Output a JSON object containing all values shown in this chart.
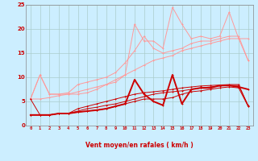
{
  "x": [
    0,
    1,
    2,
    3,
    4,
    5,
    6,
    7,
    8,
    9,
    10,
    11,
    12,
    13,
    14,
    15,
    16,
    17,
    18,
    19,
    20,
    21,
    22,
    23
  ],
  "line_smooth1": [
    5.5,
    5.5,
    5.8,
    6.2,
    6.5,
    7.0,
    7.5,
    8.0,
    8.5,
    9.5,
    10.5,
    11.5,
    12.5,
    13.5,
    14.0,
    14.5,
    15.5,
    16.0,
    16.5,
    17.0,
    17.5,
    18.0,
    18.0,
    13.5
  ],
  "line_spiky2": [
    5.5,
    10.5,
    6.5,
    6.5,
    6.8,
    8.5,
    9.0,
    9.5,
    10.0,
    11.0,
    13.0,
    15.5,
    18.5,
    16.0,
    15.0,
    15.5,
    16.0,
    17.0,
    17.5,
    17.5,
    18.0,
    18.5,
    18.5,
    13.5
  ],
  "line_spiky3": [
    5.5,
    10.5,
    6.5,
    6.5,
    6.5,
    6.5,
    6.8,
    7.5,
    8.5,
    9.0,
    10.5,
    21.0,
    17.5,
    17.5,
    16.0,
    24.5,
    21.0,
    18.0,
    18.5,
    18.0,
    18.5,
    23.5,
    18.0,
    18.0
  ],
  "line_dark1": [
    2.2,
    2.2,
    2.2,
    2.5,
    2.5,
    3.0,
    3.5,
    3.8,
    4.2,
    4.5,
    5.0,
    5.5,
    6.0,
    6.5,
    6.8,
    7.0,
    7.2,
    7.5,
    7.8,
    8.0,
    8.2,
    8.3,
    8.3,
    4.2
  ],
  "line_dark2": [
    2.2,
    2.2,
    2.2,
    2.5,
    2.5,
    2.8,
    3.0,
    3.2,
    3.5,
    4.0,
    4.5,
    5.0,
    5.5,
    5.5,
    5.5,
    5.8,
    6.5,
    7.0,
    7.2,
    7.5,
    7.8,
    8.0,
    7.8,
    4.0
  ],
  "line_dark3_thick": [
    2.2,
    2.2,
    2.2,
    2.5,
    2.5,
    2.8,
    3.0,
    3.2,
    3.5,
    4.0,
    4.5,
    9.5,
    6.5,
    5.0,
    4.2,
    10.5,
    4.5,
    7.5,
    7.8,
    7.8,
    8.3,
    8.3,
    8.0,
    7.5
  ],
  "line_dark4": [
    5.5,
    2.2,
    2.2,
    2.5,
    2.5,
    3.5,
    4.0,
    4.5,
    5.0,
    5.5,
    6.0,
    6.5,
    6.8,
    7.0,
    7.2,
    7.5,
    7.8,
    8.0,
    8.2,
    8.3,
    8.4,
    8.5,
    8.5,
    4.0
  ],
  "arrows": [
    "←",
    "←",
    "←",
    "←",
    "←",
    "←",
    "←",
    "←",
    "←",
    "←",
    "←",
    "↓",
    "↙",
    "←",
    "←",
    "→",
    "→",
    "→",
    "→",
    "→",
    "→",
    "→",
    "→",
    "↗"
  ],
  "bg_color": "#cceeff",
  "grid_color": "#aacccc",
  "line_color_dark": "#cc0000",
  "line_color_light": "#ff9999",
  "xlabel": "Vent moyen/en rafales ( km/h )",
  "ylim": [
    0,
    25
  ],
  "xlim": [
    -0.5,
    23.5
  ],
  "yticks": [
    0,
    5,
    10,
    15,
    20,
    25
  ],
  "xticks": [
    0,
    1,
    2,
    3,
    4,
    5,
    6,
    7,
    8,
    9,
    10,
    11,
    12,
    13,
    14,
    15,
    16,
    17,
    18,
    19,
    20,
    21,
    22,
    23
  ]
}
